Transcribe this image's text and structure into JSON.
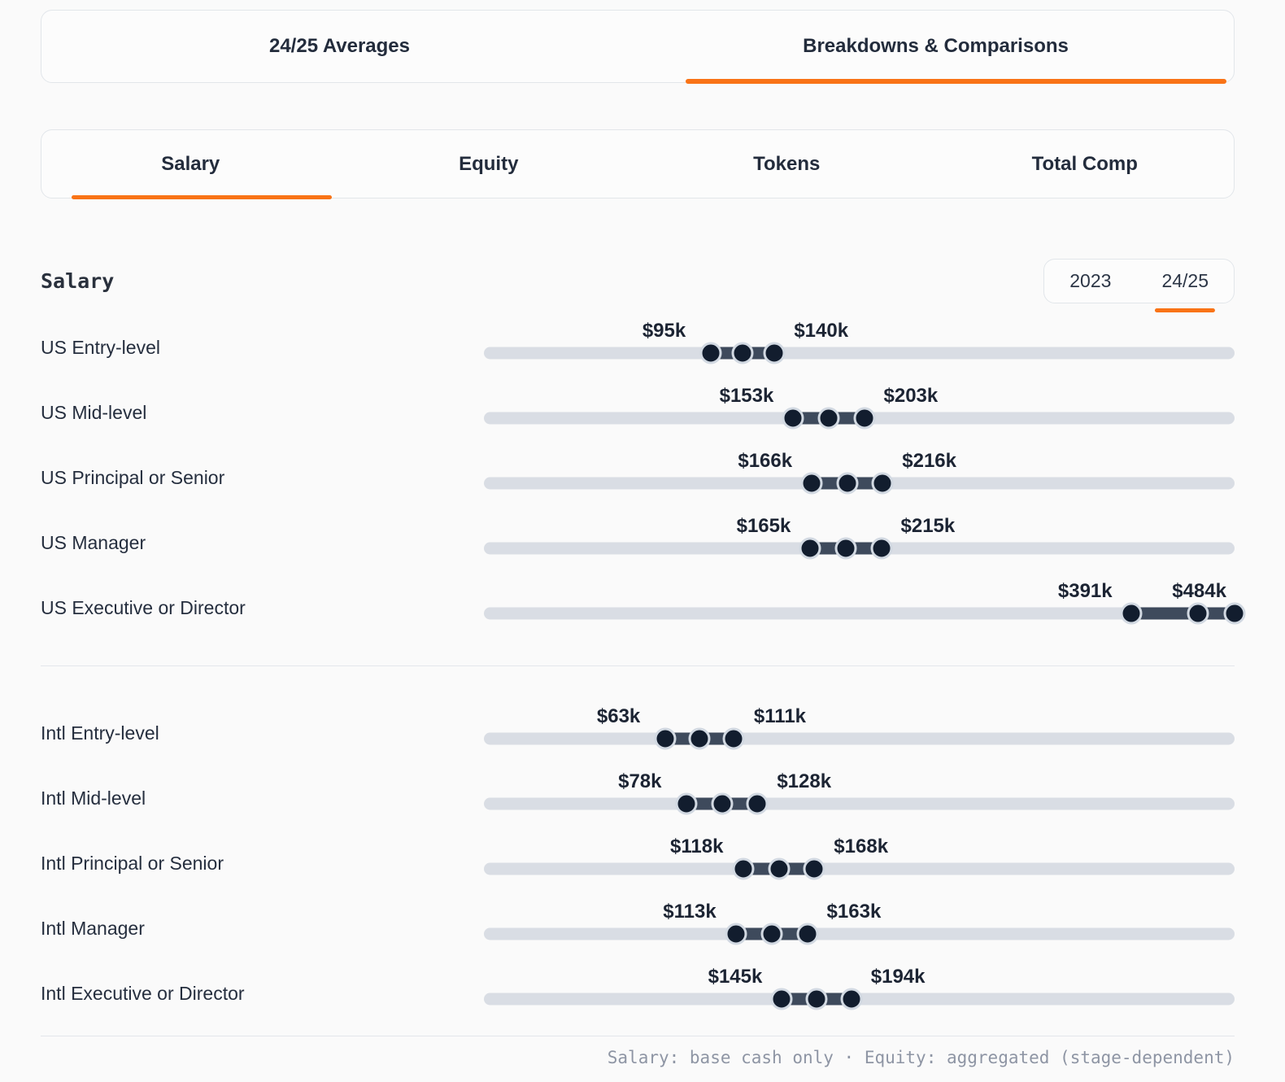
{
  "tabs_primary": {
    "items": [
      {
        "label": "24/25 Averages",
        "active": false
      },
      {
        "label": "Breakdowns & Comparisons",
        "active": true
      }
    ]
  },
  "tabs_secondary": {
    "items": [
      {
        "label": "Salary",
        "active": true
      },
      {
        "label": "Equity",
        "active": false
      },
      {
        "label": "Tokens",
        "active": false
      },
      {
        "label": "Total Comp",
        "active": false
      }
    ]
  },
  "section": {
    "title": "Salary"
  },
  "year_toggle": {
    "options": [
      {
        "label": "2023",
        "active": false
      },
      {
        "label": "24/25",
        "active": true
      }
    ]
  },
  "footer": {
    "note": "Salary: base cash only · Equity: aggregated (stage-dependent)"
  },
  "colors": {
    "accent": "#f97316",
    "track": "#d9dde4",
    "range_fill": "#3e4a5c",
    "dot": "#121d2e",
    "dot_ring": "#d2d9e2",
    "text_dark": "#1c2433",
    "text_muted": "#8e95a4"
  },
  "chart_data": {
    "type": "range-slider-comparison",
    "title": "Salary",
    "period": "24/25",
    "unit": "USD thousands per year",
    "scale": {
      "pct_intercept": 12.2,
      "pct_per_k": 0.1895,
      "label_offset_pct": 6.2
    },
    "groups": [
      {
        "name": "US",
        "rows": [
          {
            "label": "US Entry-level",
            "min_k": 95,
            "max_k": 140,
            "min_label": "$95k",
            "max_label": "$140k"
          },
          {
            "label": "US Mid-level",
            "min_k": 153,
            "max_k": 203,
            "min_label": "$153k",
            "max_label": "$203k"
          },
          {
            "label": "US Principal or Senior",
            "min_k": 166,
            "max_k": 216,
            "min_label": "$166k",
            "max_label": "$216k"
          },
          {
            "label": "US Manager",
            "min_k": 165,
            "max_k": 215,
            "min_label": "$165k",
            "max_label": "$215k"
          },
          {
            "label": "US Executive or Director",
            "min_k": 391,
            "max_k": 484,
            "min_label": "$391k",
            "max_label": "$484k"
          }
        ]
      },
      {
        "name": "Intl",
        "rows": [
          {
            "label": "Intl Entry-level",
            "min_k": 63,
            "max_k": 111,
            "min_label": "$63k",
            "max_label": "$111k"
          },
          {
            "label": "Intl Mid-level",
            "min_k": 78,
            "max_k": 128,
            "min_label": "$78k",
            "max_label": "$128k"
          },
          {
            "label": "Intl Principal or Senior",
            "min_k": 118,
            "max_k": 168,
            "min_label": "$118k",
            "max_label": "$168k"
          },
          {
            "label": "Intl Manager",
            "min_k": 113,
            "max_k": 163,
            "min_label": "$113k",
            "max_label": "$163k"
          },
          {
            "label": "Intl Executive or Director",
            "min_k": 145,
            "max_k": 194,
            "min_label": "$145k",
            "max_label": "$194k"
          }
        ]
      }
    ]
  }
}
